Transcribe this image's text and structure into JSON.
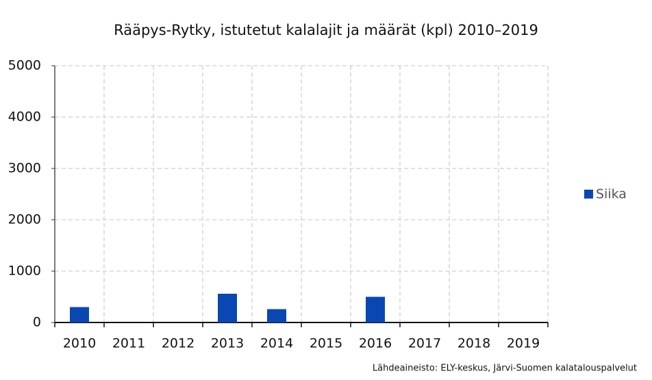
{
  "chart_data": {
    "type": "bar",
    "title": "Rääpys-Rytky, istutetut kalalajit ja määrät (kpl) 2010–2019",
    "categories": [
      "2010",
      "2011",
      "2012",
      "2013",
      "2014",
      "2015",
      "2016",
      "2017",
      "2018",
      "2019"
    ],
    "series": [
      {
        "name": "Siika",
        "color": "#0a47b3",
        "values": [
          300,
          null,
          null,
          560,
          260,
          null,
          500,
          null,
          null,
          null
        ]
      }
    ],
    "ylim": [
      0,
      5000
    ],
    "yticks": [
      0,
      1000,
      2000,
      3000,
      4000,
      5000
    ],
    "grid": true,
    "legend": "right",
    "source": "Lähdeaineisto: ELY-keskus, Järvi-Suomen kalatalouspalvelut"
  }
}
